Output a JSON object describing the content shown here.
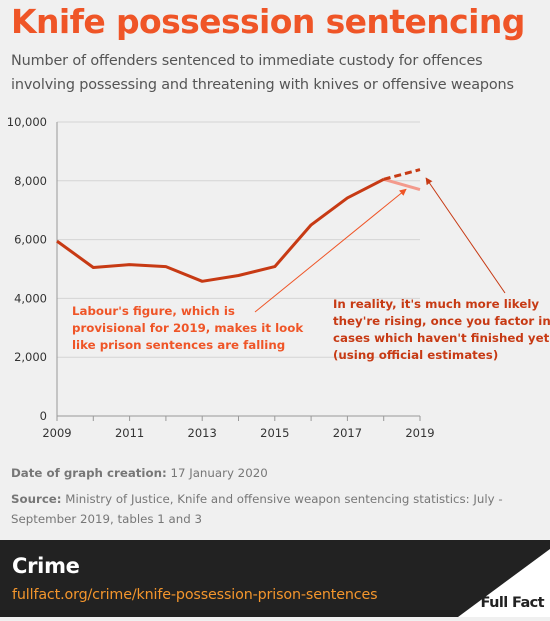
{
  "header": {
    "title": "Knife possession sentencing",
    "subtitle": "Number of offenders sentenced to immediate custody for offences involving possessing and threatening with knives or offensive weapons"
  },
  "chart_data": {
    "type": "line",
    "title": "",
    "xlabel": "",
    "ylabel": "",
    "xlim": [
      2009,
      2019
    ],
    "ylim": [
      0,
      10000
    ],
    "x_ticks": [
      "2009",
      "2011",
      "2013",
      "2015",
      "2017",
      "2019"
    ],
    "y_ticks": [
      "0",
      "2,000",
      "4,000",
      "6,000",
      "8,000",
      "10,000"
    ],
    "grid": "horizontal",
    "series": [
      {
        "style": "solid",
        "color": "#c73a14",
        "x": [
          2009,
          2010,
          2011,
          2012,
          2013,
          2014,
          2015,
          2016,
          2017,
          2018
        ],
        "values": [
          5950,
          5050,
          5150,
          5080,
          4580,
          4780,
          5080,
          6500,
          7420,
          8050
        ]
      },
      {
        "style": "dashed",
        "color": "#c73a14",
        "x": [
          2018,
          2019
        ],
        "values": [
          8050,
          8380
        ]
      },
      {
        "style": "solid",
        "color": "#f39a8c",
        "x": [
          2018,
          2019
        ],
        "values": [
          8050,
          7700
        ]
      }
    ],
    "annotations": [
      {
        "id": "labour",
        "color": "#ef5527",
        "lines": [
          "Labour's figure, which is",
          "provisional for 2019, makes it look",
          "like prison sentences are falling"
        ]
      },
      {
        "id": "reality",
        "color": "#c73a14",
        "lines": [
          "In reality, it's much more likely",
          "they're rising, once you factor in",
          "cases which haven't finished yet",
          "(using official estimates)"
        ]
      }
    ]
  },
  "meta": {
    "date_label": "Date of graph creation:",
    "date_value": "17 January 2020",
    "source_label": "Source:",
    "source_value": "Ministry of Justice, Knife and offensive weapon sentencing statistics: July - September 2019, tables 1 and 3"
  },
  "footer": {
    "topic": "Crime",
    "url": "fullfact.org/crime/knife-possession-prison-sentences",
    "logo_text": "Full Fact"
  },
  "colors": {
    "accent": "#ef5527",
    "dark_line": "#c73a14",
    "light_line": "#f39a8c",
    "link": "#f3952c",
    "footer_bg": "#222222"
  }
}
